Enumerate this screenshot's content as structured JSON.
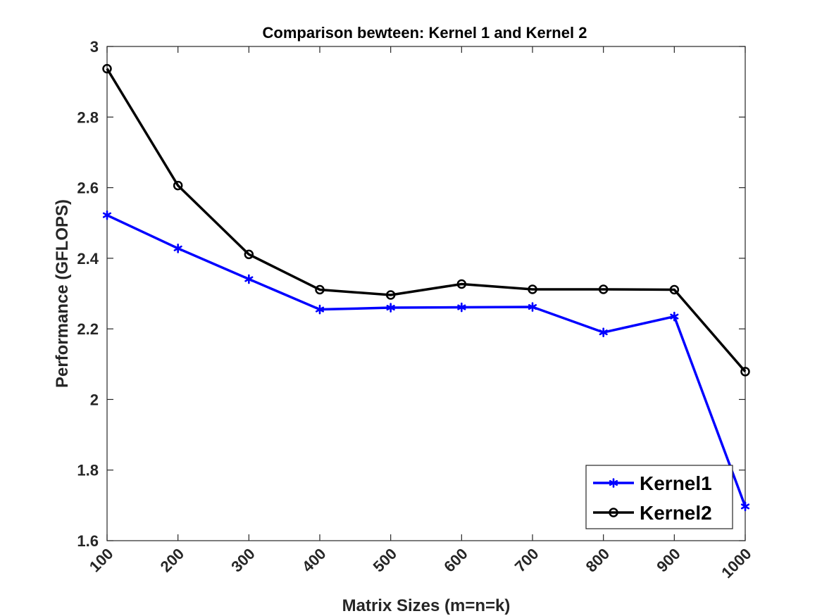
{
  "chart_data": {
    "type": "line",
    "title": "Comparison bewteen: Kernel 1 and Kernel 2",
    "xlabel": "Matrix Sizes (m=n=k)",
    "ylabel": "Performance (GFLOPS)",
    "x": [
      100,
      200,
      300,
      400,
      500,
      600,
      700,
      800,
      900,
      1000
    ],
    "xlim": [
      100,
      1000
    ],
    "ylim": [
      1.6,
      3.0
    ],
    "xticks": [
      100,
      200,
      300,
      400,
      500,
      600,
      700,
      800,
      900,
      1000
    ],
    "xtick_labels": [
      "100",
      "200",
      "300",
      "400",
      "500",
      "600",
      "700",
      "800",
      "900",
      "1000"
    ],
    "yticks": [
      1.6,
      1.8,
      2.0,
      2.2,
      2.4,
      2.6,
      2.8,
      3.0
    ],
    "ytick_labels": [
      "1.6",
      "1.8",
      "2",
      "2.2",
      "2.4",
      "2.6",
      "2.8",
      "3"
    ],
    "grid": false,
    "legend_position": "bottom-right",
    "series": [
      {
        "name": "Kernel1",
        "color": "#0000ff",
        "marker": "asterisk",
        "values": [
          2.522,
          2.428,
          2.341,
          2.255,
          2.26,
          2.261,
          2.262,
          2.19,
          2.235,
          1.697
        ]
      },
      {
        "name": "Kernel2",
        "color": "#000000",
        "marker": "circle",
        "values": [
          2.937,
          2.606,
          2.411,
          2.311,
          2.296,
          2.327,
          2.312,
          2.312,
          2.311,
          2.079
        ]
      }
    ]
  }
}
